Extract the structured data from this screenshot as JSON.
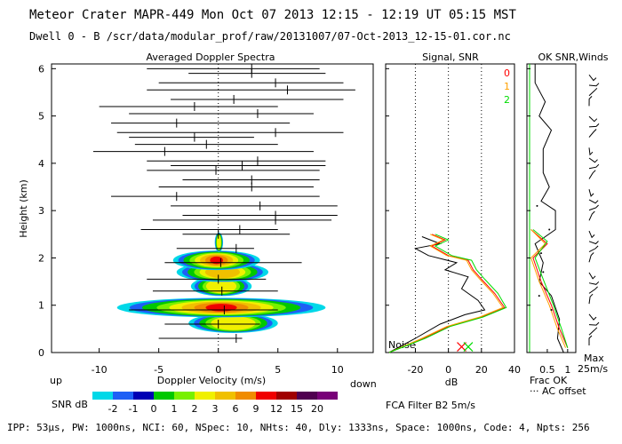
{
  "header": {
    "line1": "Meteor Crater  MAPR-449  Mon Oct 07 2013 12:15 - 12:19 UT 05:15 MST",
    "line2": "Dwell  0 -  B   /scr/data/modular_prof/raw/20131007/07-Oct-2013_12-15-01.cor.nc"
  },
  "footer": "IPP: 53µs,  PW: 1000ns,  NCI: 60,  NSpec: 10, NHts: 40,  Dly: 1333ns,  Space: 1000ns,  Code: 4,  Npts: 256",
  "panel_titles": {
    "doppler": "Averaged Doppler Spectra",
    "signal": "Signal, SNR",
    "ok": "OK SNR,Winds"
  },
  "annotations": {
    "up": "up",
    "down": "down",
    "noise": "Noise",
    "fca": "FCA Filter B2  5m/s",
    "frac_ok": "Frac OK",
    "ac_offset": "··· AC offset",
    "max": "Max",
    "max_speed": "25m/s",
    "snr_label": "SNR dB"
  },
  "colors": {
    "scale": [
      "#00d8e8",
      "#1e5ff5",
      "#0000b4",
      "#00c800",
      "#78f000",
      "#f0f000",
      "#f0c000",
      "#f08c00",
      "#f00000",
      "#a00000",
      "#500050",
      "#780078"
    ],
    "series0": "#ff0000",
    "series1": "#ffa000",
    "series2": "#00dd00"
  },
  "chart_data": [
    {
      "type": "heatmap",
      "title": "Averaged Doppler Spectra",
      "xlabel": "Doppler Velocity (m/s)",
      "ylabel": "Height (km)",
      "xlim": [
        -14,
        13
      ],
      "ylim": [
        0,
        6.1
      ],
      "xticks": [
        -10,
        -5,
        0,
        5,
        10
      ],
      "yticks": [
        0,
        1,
        2,
        3,
        4,
        5,
        6
      ],
      "colorbar": {
        "label": "SNR dB",
        "ticks": [
          "-2",
          "-1",
          "0",
          "1",
          "2",
          "3",
          "6",
          "9",
          "12",
          "15",
          "20"
        ]
      },
      "hotspots": [
        {
          "h": 0.62,
          "vmin": -2.5,
          "vmax": 5,
          "core": 1
        },
        {
          "h": 0.95,
          "vmin": -8.5,
          "vmax": 9,
          "core": 5
        },
        {
          "h": 1.4,
          "vmin": -2.3,
          "vmax": 2.8,
          "core": 1
        },
        {
          "h": 1.7,
          "vmin": -3.5,
          "vmax": 4.2,
          "core": 1.2
        },
        {
          "h": 1.95,
          "vmin": -3.8,
          "vmax": 3.5,
          "core": 2.5
        },
        {
          "h": 2.33,
          "vmin": -0.3,
          "vmax": 0.4,
          "core": 0.2
        }
      ],
      "spread_bars": [
        {
          "h": 0.3,
          "left": -5.0,
          "right": 2.0,
          "center": 1.5
        },
        {
          "h": 0.6,
          "left": -4.5,
          "right": 3.5,
          "center": 0.0
        },
        {
          "h": 0.9,
          "left": -7.5,
          "right": 5.0,
          "center": 0.5
        },
        {
          "h": 1.3,
          "left": -5.5,
          "right": 5.0,
          "center": 0.3
        },
        {
          "h": 1.55,
          "left": -6.0,
          "right": 4.0,
          "center": 0.0
        },
        {
          "h": 1.9,
          "left": -4.5,
          "right": 7.0,
          "center": 0.2
        },
        {
          "h": 2.2,
          "left": -3.5,
          "right": 3.0,
          "center": 1.5
        },
        {
          "h": 2.5,
          "left": -3.0,
          "right": 6.0,
          "center": 0.0
        },
        {
          "h": 2.6,
          "left": -6.5,
          "right": 5.0,
          "center": 1.8
        },
        {
          "h": 2.8,
          "left": -5.5,
          "right": 9.5,
          "center": 4.8
        },
        {
          "h": 2.9,
          "left": -3.0,
          "right": 10.0,
          "center": 4.8
        },
        {
          "h": 3.1,
          "left": -4.0,
          "right": 10.0,
          "center": 3.5
        },
        {
          "h": 3.3,
          "left": -9.0,
          "right": 8.5,
          "center": -3.5
        },
        {
          "h": 3.5,
          "left": -5.0,
          "right": 8.0,
          "center": 2.8
        },
        {
          "h": 3.65,
          "left": -3.0,
          "right": 8.5,
          "center": 2.8
        },
        {
          "h": 3.85,
          "left": -6.0,
          "right": 8.5,
          "center": -0.2
        },
        {
          "h": 3.95,
          "left": -4.0,
          "right": 9.0,
          "center": 2.0
        },
        {
          "h": 4.05,
          "left": -6.0,
          "right": 9.0,
          "center": 3.3
        },
        {
          "h": 4.25,
          "left": -10.5,
          "right": 8.0,
          "center": -4.5
        },
        {
          "h": 4.4,
          "left": -7.0,
          "right": 5.0,
          "center": -1.0
        },
        {
          "h": 4.55,
          "left": -7.5,
          "right": 3.0,
          "center": -2.0
        },
        {
          "h": 4.65,
          "left": -8.5,
          "right": 10.5,
          "center": 4.8
        },
        {
          "h": 4.85,
          "left": -9.0,
          "right": 6.0,
          "center": -3.5
        },
        {
          "h": 5.05,
          "left": -7.5,
          "right": 8.0,
          "center": 3.3
        },
        {
          "h": 5.2,
          "left": -10.0,
          "right": 5.0,
          "center": -2.0
        },
        {
          "h": 5.35,
          "left": -4.0,
          "right": 10.5,
          "center": 1.3
        },
        {
          "h": 5.55,
          "left": -6.0,
          "right": 11.5,
          "center": 5.8
        },
        {
          "h": 5.7,
          "left": -5.0,
          "right": 10.5,
          "center": 4.8
        },
        {
          "h": 5.9,
          "left": -2.5,
          "right": 9.0,
          "center": 2.8
        },
        {
          "h": 6.0,
          "left": -6.0,
          "right": 8.5,
          "center": 2.8
        }
      ]
    },
    {
      "type": "line",
      "title": "Signal, SNR",
      "xlabel": "dB",
      "ylabel": "Height (km)",
      "xlim": [
        -38,
        40
      ],
      "ylim": [
        0,
        6.1
      ],
      "xticks": [
        -20,
        0,
        20,
        40
      ],
      "gridlines": [
        -20,
        0,
        20
      ],
      "series": [
        {
          "name": "signal",
          "color": "#000000",
          "points": [
            [
              -36,
              0
            ],
            [
              -20,
              0.3
            ],
            [
              -5,
              0.6
            ],
            [
              10,
              0.8
            ],
            [
              22,
              0.9
            ],
            [
              18,
              1.1
            ],
            [
              8,
              1.35
            ],
            [
              12,
              1.6
            ],
            [
              -2,
              1.75
            ],
            [
              5,
              1.9
            ],
            [
              -12,
              2.05
            ],
            [
              -20,
              2.2
            ],
            [
              -5,
              2.3
            ],
            [
              -16,
              2.45
            ]
          ]
        },
        {
          "name": "0",
          "color": "#ff0000",
          "points": [
            [
              -36,
              0
            ],
            [
              -15,
              0.3
            ],
            [
              0,
              0.55
            ],
            [
              20,
              0.75
            ],
            [
              34,
              0.95
            ],
            [
              28,
              1.25
            ],
            [
              20,
              1.55
            ],
            [
              15,
              1.75
            ],
            [
              12,
              1.95
            ],
            [
              0,
              2.05
            ],
            [
              -10,
              2.25
            ],
            [
              -2,
              2.38
            ],
            [
              -10,
              2.5
            ]
          ]
        },
        {
          "name": "1",
          "color": "#ffa000",
          "points": [
            [
              -36,
              0
            ],
            [
              -16,
              0.3
            ],
            [
              -1,
              0.55
            ],
            [
              19,
              0.75
            ],
            [
              33,
              0.95
            ],
            [
              27,
              1.25
            ],
            [
              19,
              1.55
            ],
            [
              14,
              1.75
            ],
            [
              11,
              1.95
            ],
            [
              -1,
              2.05
            ],
            [
              -11,
              2.25
            ],
            [
              -3,
              2.38
            ],
            [
              -11,
              2.5
            ]
          ]
        },
        {
          "name": "2",
          "color": "#00dd00",
          "points": [
            [
              -36,
              0
            ],
            [
              -14,
              0.3
            ],
            [
              1,
              0.55
            ],
            [
              21,
              0.75
            ],
            [
              35,
              0.95
            ],
            [
              30,
              1.25
            ],
            [
              22,
              1.55
            ],
            [
              17,
              1.75
            ],
            [
              14,
              1.95
            ],
            [
              2,
              2.05
            ],
            [
              -8,
              2.25
            ],
            [
              0,
              2.38
            ],
            [
              -8,
              2.5
            ]
          ]
        }
      ]
    },
    {
      "type": "line",
      "title": "OK SNR,Winds",
      "xlabel": "Frac OK",
      "ylabel": "Height (km)",
      "xlim": [
        0,
        1.2
      ],
      "ylim": [
        0,
        6.1
      ],
      "xticks": [
        0.5,
        1
      ],
      "xtick_labels": [
        "0.5",
        "1"
      ],
      "series": [
        {
          "name": "frac_ok",
          "color": "#000000",
          "points": [
            [
              0.2,
              6.1
            ],
            [
              0.2,
              5.7
            ],
            [
              0.45,
              5.3
            ],
            [
              0.3,
              5.0
            ],
            [
              0.6,
              4.7
            ],
            [
              0.4,
              4.3
            ],
            [
              0.4,
              3.8
            ],
            [
              0.55,
              3.5
            ],
            [
              0.35,
              3.2
            ],
            [
              0.7,
              3.0
            ],
            [
              0.7,
              2.6
            ],
            [
              0.2,
              2.3
            ],
            [
              0.4,
              1.9
            ],
            [
              0.3,
              1.5
            ],
            [
              0.6,
              1.2
            ],
            [
              0.8,
              0.7
            ],
            [
              0.75,
              0.3
            ],
            [
              0.9,
              0.0
            ]
          ]
        },
        {
          "name": "snr0",
          "color": "#ff0000",
          "points": [
            [
              0.1,
              2.6
            ],
            [
              0.5,
              2.3
            ],
            [
              0.15,
              2.0
            ],
            [
              0.35,
              1.5
            ],
            [
              0.6,
              1.0
            ],
            [
              0.8,
              0.5
            ],
            [
              1.0,
              0.1
            ]
          ]
        },
        {
          "name": "snr1",
          "color": "#ffa000",
          "points": [
            [
              0.1,
              2.6
            ],
            [
              0.45,
              2.3
            ],
            [
              0.1,
              2.0
            ],
            [
              0.3,
              1.5
            ],
            [
              0.55,
              1.0
            ],
            [
              0.75,
              0.5
            ],
            [
              0.95,
              0.1
            ]
          ]
        },
        {
          "name": "snr2",
          "color": "#00dd00",
          "points": [
            [
              0.15,
              2.6
            ],
            [
              0.5,
              2.35
            ],
            [
              0.2,
              2.0
            ],
            [
              0.4,
              1.55
            ],
            [
              0.65,
              1.0
            ],
            [
              0.85,
              0.5
            ],
            [
              1.0,
              0.1
            ]
          ]
        }
      ]
    }
  ]
}
